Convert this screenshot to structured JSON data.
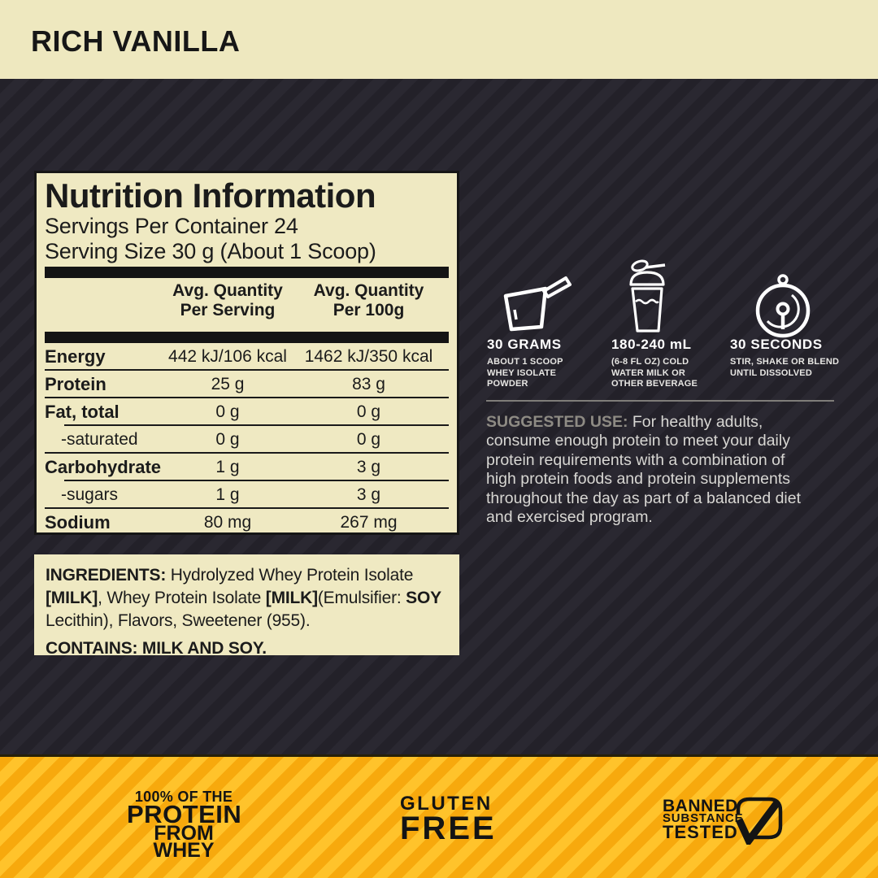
{
  "header": {
    "flavor": "RICH VANILLA"
  },
  "colors": {
    "cream": "#EFE9C2",
    "dark_background": "#232129",
    "dark_stripe": "#2A2831",
    "accent_yellow": "#F7A90D",
    "yellow_stripe": "#FFC32B",
    "text_dark": "#161616",
    "text_light": "#D8D7D3",
    "suggested_label_grey": "#8E8B84"
  },
  "nutrition_panel": {
    "title": "Nutrition Information",
    "servings_per_container": "Servings Per Container 24",
    "serving_size": "Serving Size 30 g (About 1 Scoop)",
    "col_headers": [
      "Avg. Quantity\nPer Serving",
      "Avg. Quantity\nPer 100g"
    ],
    "rows": [
      {
        "label": "Energy",
        "per_serving": "442 kJ/106 kcal",
        "per_100g": "1462 kJ/350 kcal"
      },
      {
        "label": "Protein",
        "per_serving": "25 g",
        "per_100g": "83 g"
      },
      {
        "label": "Fat, total",
        "per_serving": "0 g",
        "per_100g": "0 g"
      },
      {
        "label": "-saturated",
        "per_serving": "0 g",
        "per_100g": "0 g"
      },
      {
        "label": "Carbohydrate",
        "per_serving": "1 g",
        "per_100g": "3 g"
      },
      {
        "label": "-sugars",
        "per_serving": "1 g",
        "per_100g": "3 g"
      },
      {
        "label": "Sodium",
        "per_serving": "80 mg",
        "per_100g": "267 mg"
      }
    ]
  },
  "ingredients_panel": {
    "ingredients_segments": [
      {
        "text": "INGREDIENTS: ",
        "bold": true
      },
      {
        "text": "Hydrolyzed Whey Protein Isolate ",
        "bold": false
      },
      {
        "text": "[MILK]",
        "bold": true
      },
      {
        "text": ", Whey Protein Isolate ",
        "bold": false
      },
      {
        "text": "[MILK]",
        "bold": true
      },
      {
        "text": "(Emulsifier: ",
        "bold": false
      },
      {
        "text": "SOY",
        "bold": true
      },
      {
        "text": " Lecithin), Flavors, Sweetener (955).",
        "bold": false
      }
    ],
    "contains": "CONTAINS: MILK AND SOY."
  },
  "usage_steps": [
    {
      "icon": "scoop-icon",
      "heading": "30 GRAMS",
      "caption": "ABOUT 1 SCOOP\nWHEY ISOLATE\nPOWDER"
    },
    {
      "icon": "shaker-icon",
      "heading": "180-240 mL",
      "caption": "(6-8 FL OZ) COLD\nWATER MILK OR\nOTHER BEVERAGE"
    },
    {
      "icon": "timer-icon",
      "heading": "30 SECONDS",
      "caption": "STIR, SHAKE OR BLEND\nUNTIL DISSOLVED"
    }
  ],
  "suggested_use": {
    "label": "SUGGESTED USE: ",
    "text": "For healthy adults,\nconsume enough protein to meet your daily\nprotein requirements with a combination of\nhigh protein foods and protein supplements\nthroughout the day as part of a balanced diet\nand exercised program."
  },
  "bottom_band": {
    "claim_protein": {
      "line1": "100% OF THE",
      "line2": "PROTEIN",
      "line3": "FROM WHEY"
    },
    "claim_gluten": {
      "line1": "GLUTEN",
      "line2": "FREE"
    },
    "claim_banned": {
      "line1": "BANNED",
      "line2": "SUBSTANCE",
      "line3": "TESTED"
    }
  }
}
